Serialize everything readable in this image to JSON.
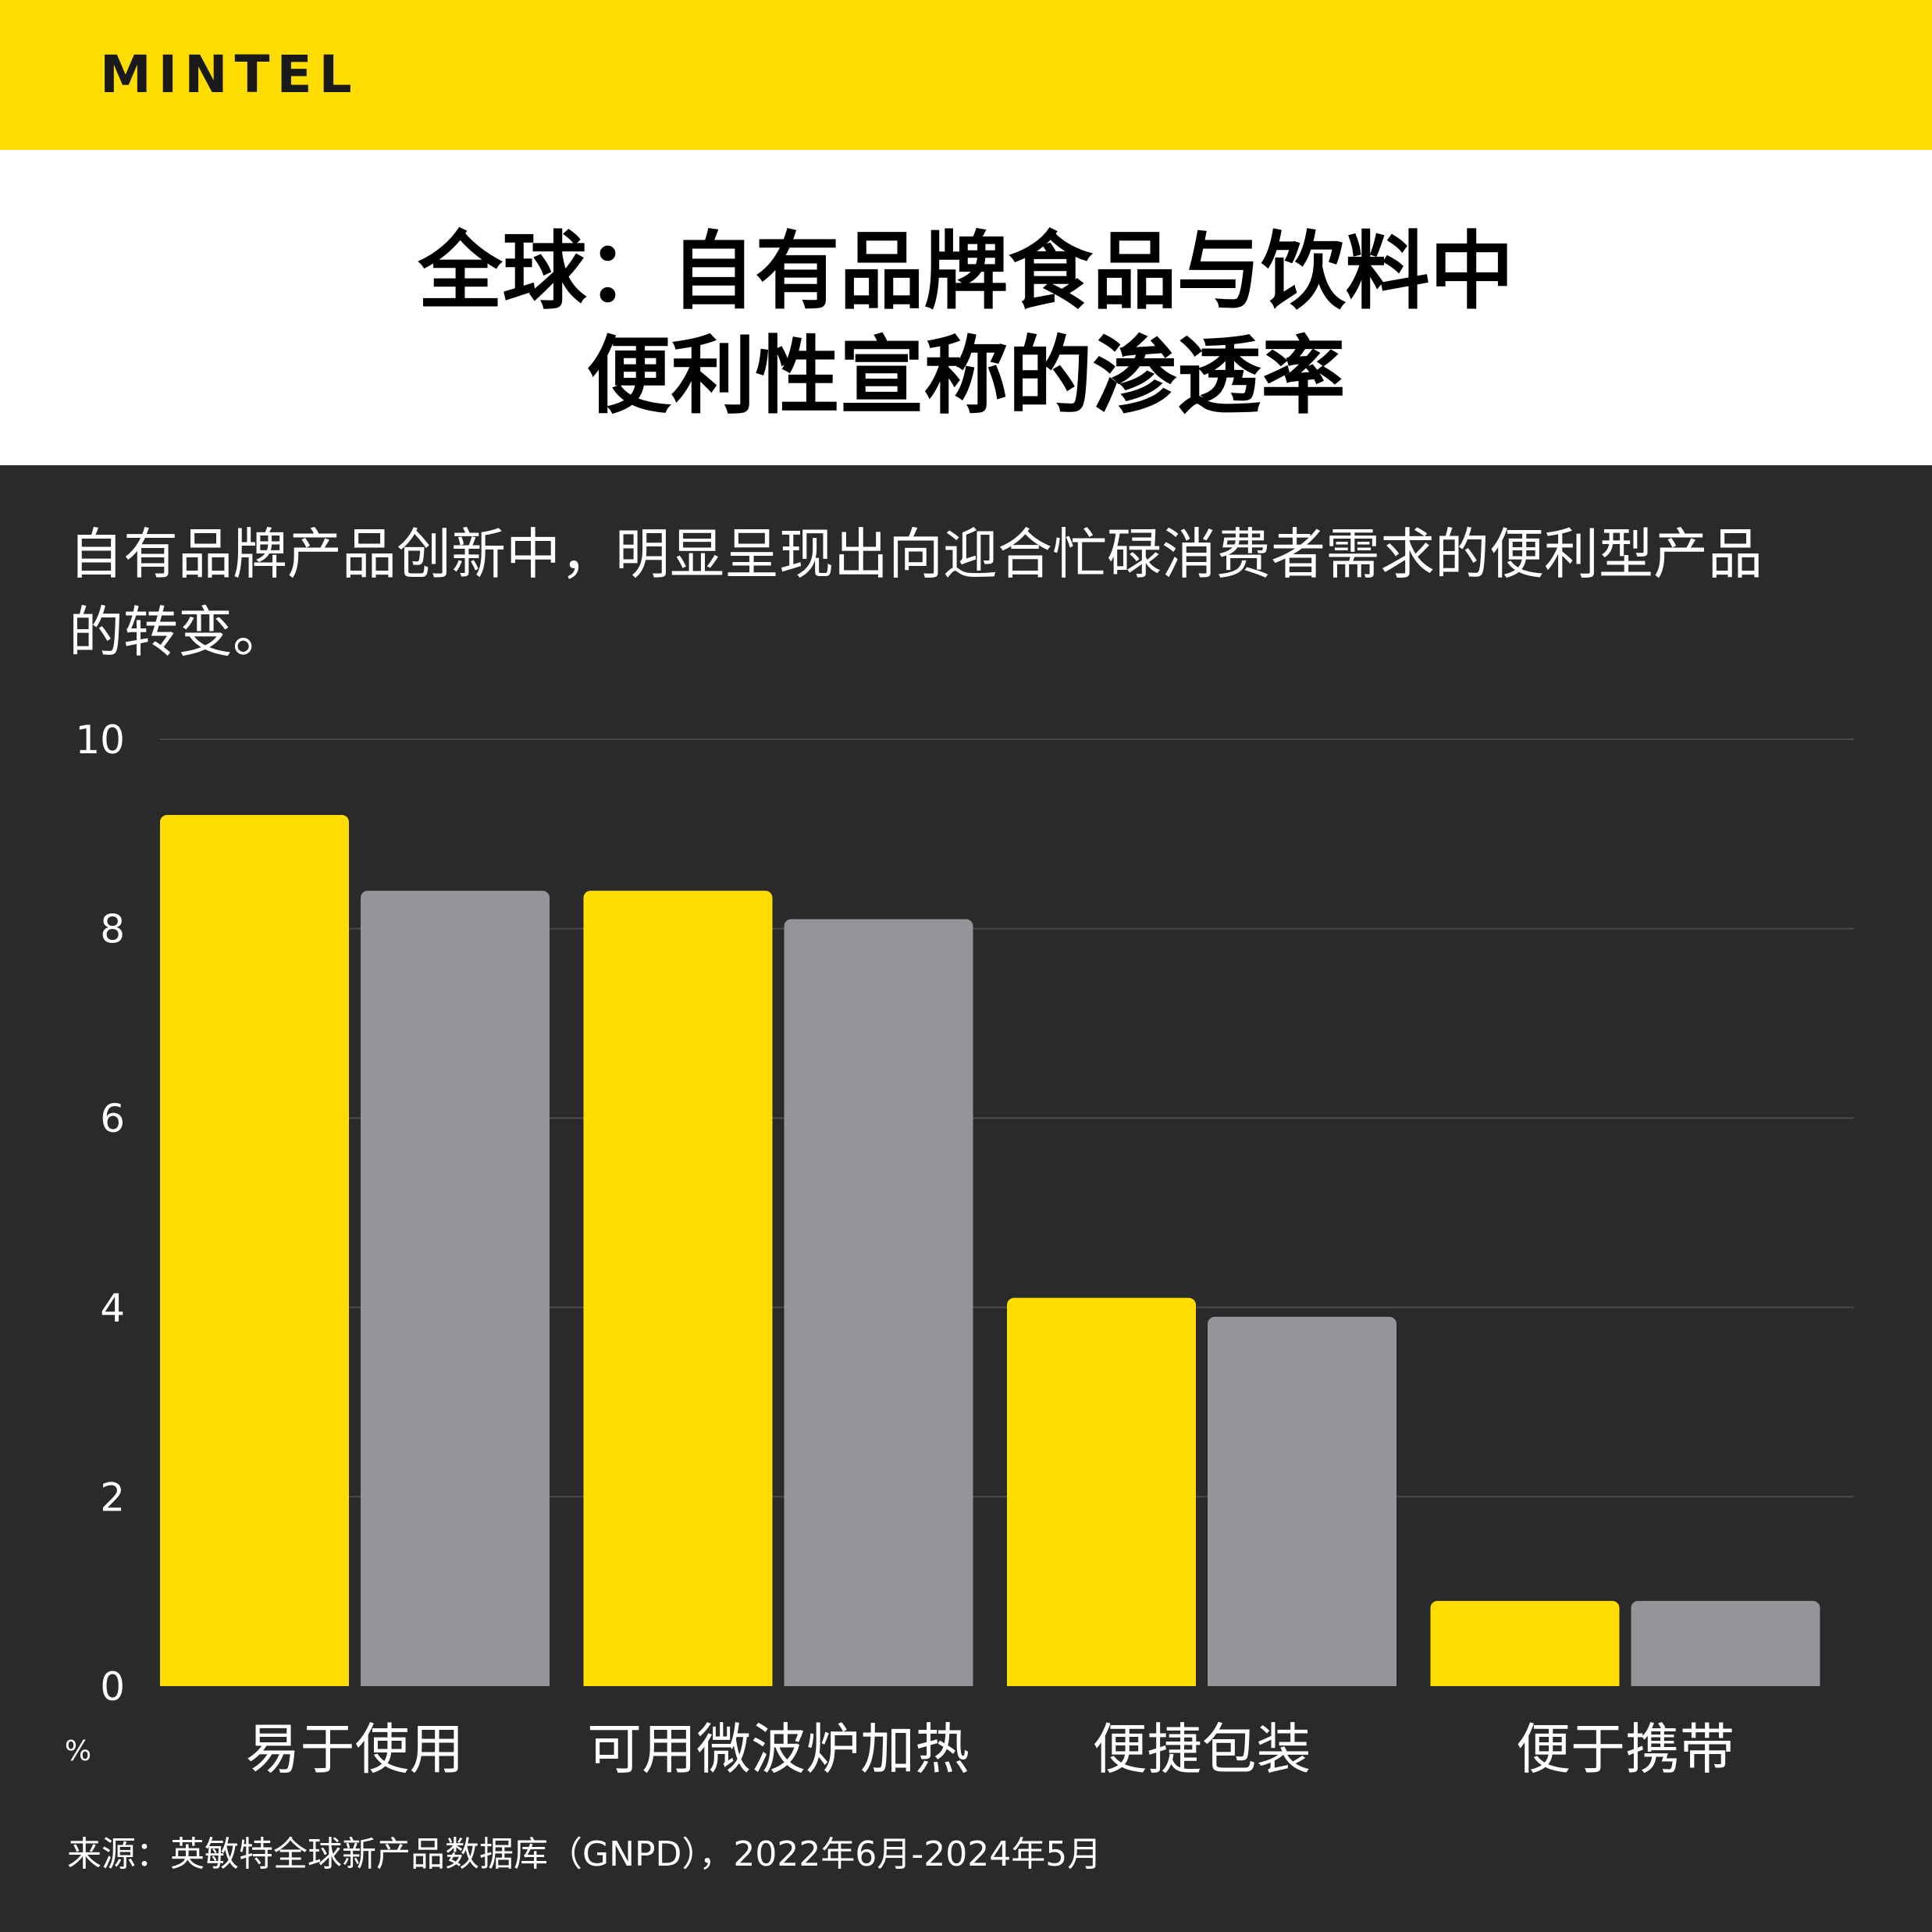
{
  "header": {
    "brand": "MINTEL"
  },
  "title": {
    "line1": "全球：自有品牌食品与饮料中",
    "line2": "便利性宣称的渗透率"
  },
  "subtitle": {
    "line1": "自有品牌产品创新中，明显呈现出向迎合忙碌消费者需求的便利型产品",
    "line2": "的转变。"
  },
  "colors": {
    "brand_yellow": "#FFDD00",
    "background": "#2a2a2a",
    "series_grey": "#939598"
  },
  "chart_data": {
    "type": "bar",
    "categories": [
      "易于使用",
      "可用微波炉加热",
      "便捷包装",
      "便于携带"
    ],
    "series": [
      {
        "color": "#FFDD00",
        "values": [
          9.2,
          8.4,
          4.1,
          0.9
        ]
      },
      {
        "color": "#939598",
        "values": [
          8.4,
          8.1,
          3.9,
          0.9
        ]
      }
    ],
    "ylim": [
      0,
      10
    ],
    "yticks": [
      "0",
      "2",
      "4",
      "6",
      "8",
      "10"
    ],
    "ylabel": "%",
    "xlabel": "",
    "title": "",
    "grid": true
  },
  "footer": {
    "source": "来源：英敏特全球新产品数据库（GNPD），2022年6月-2024年5月"
  }
}
